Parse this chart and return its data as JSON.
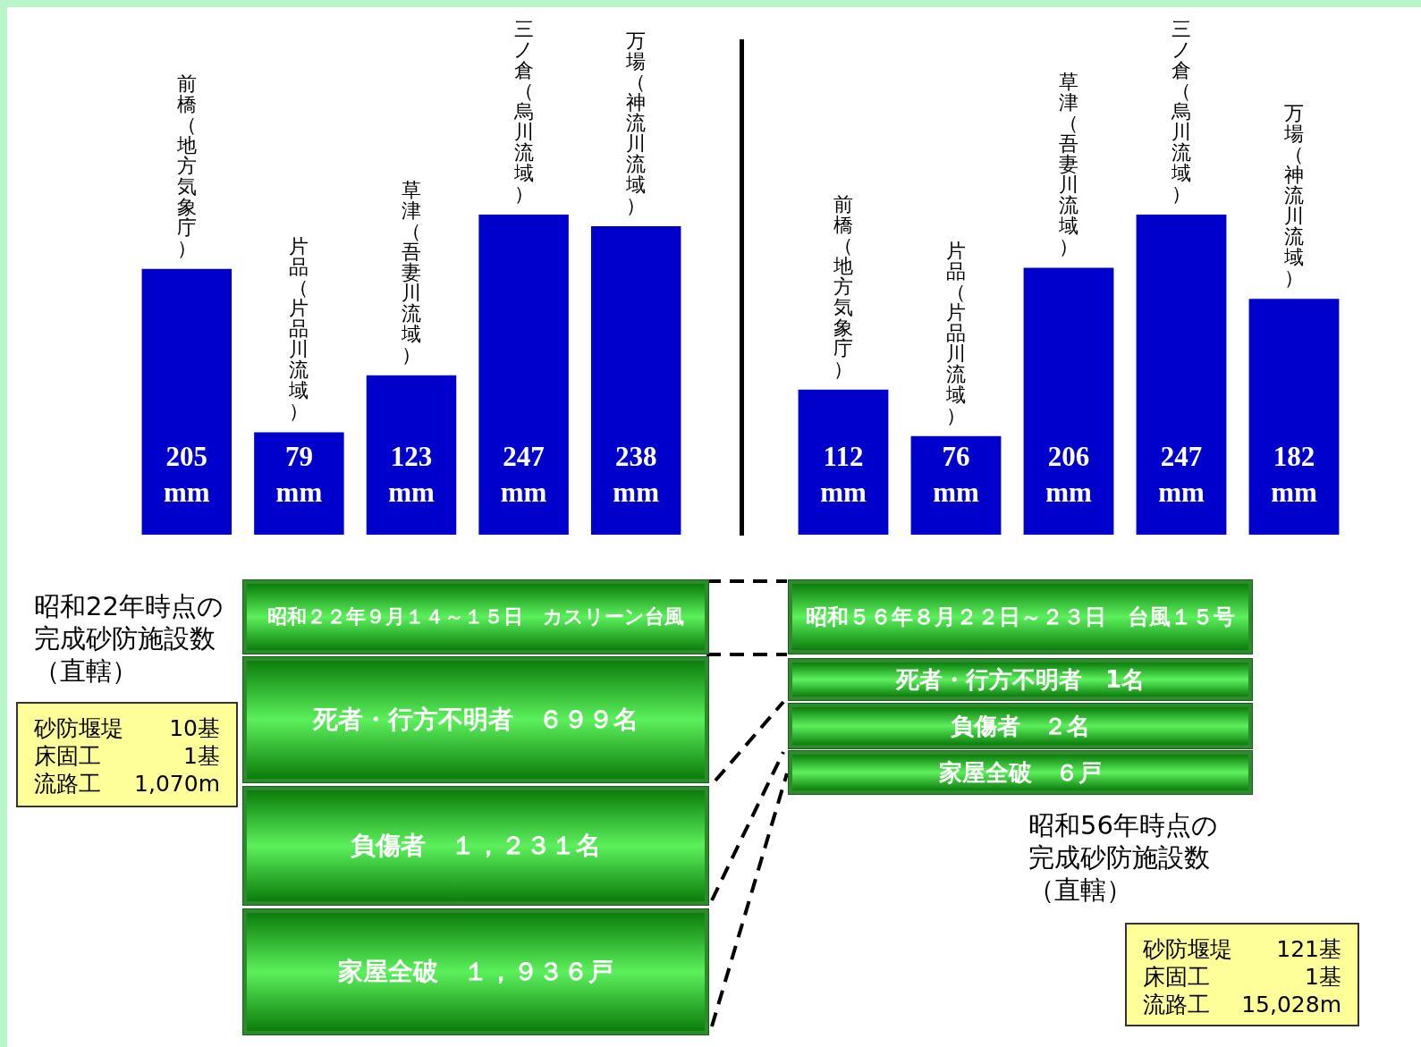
{
  "chart_data": [
    {
      "type": "bar",
      "categories": [
        "前橋（地方気象庁）",
        "片品（片品川流域）",
        "草津（吾妻川流域）",
        "三ノ倉（烏川流域）",
        "万場（神流川流域）"
      ],
      "values": [
        205,
        79,
        123,
        247,
        238
      ],
      "value_labels": [
        "205 mm",
        "79 mm",
        "123 mm",
        "247 mm",
        "238 mm"
      ],
      "color": "#0000cc"
    },
    {
      "type": "bar",
      "categories": [
        "前橋（地方気象庁）",
        "片品（片品川流域）",
        "草津（吾妻川流域）",
        "三ノ倉（烏川流域）",
        "万場（神流川流域）"
      ],
      "values": [
        112,
        76,
        206,
        247,
        182
      ],
      "value_labels": [
        "112 mm",
        "76 mm",
        "206 mm",
        "247 mm",
        "182 mm"
      ],
      "color": "#0000cc"
    },
    {
      "type": "other",
      "title": "昭和２２年９月１４～１５日　カスリーン台風",
      "annotations": [
        "死者・行方不明者　６９９名",
        "負傷者　１，２３１名",
        "家屋全破　１，９３６戸",
        "昭和22年時点の完成砂防施設数（直轄）",
        "砂防堰堤　10基",
        "床固工　1基",
        "流路工　1,070m"
      ]
    },
    {
      "type": "other",
      "title": "昭和５６年８月２２日～２３日　台風１５号",
      "annotations": [
        "死者・行方不明者　1名",
        "負傷者　２名",
        "家屋全破　６戸",
        "昭和56年時点の完成砂防施設数（直轄）",
        "砂防堰堤　121基",
        "床固工　1基",
        "流路工　15,028m"
      ]
    }
  ]
}
